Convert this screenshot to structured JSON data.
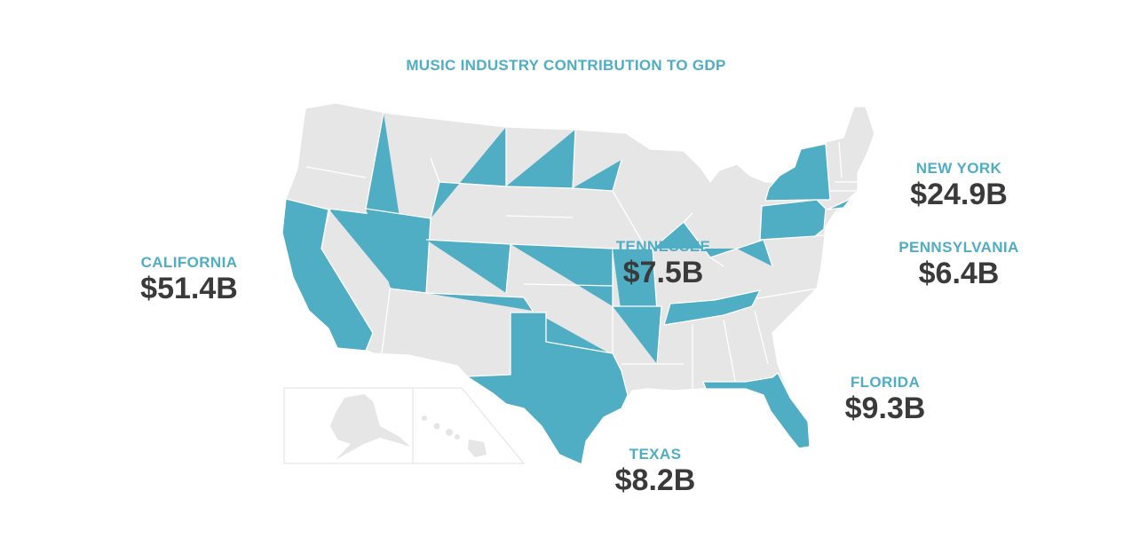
{
  "title": "MUSIC INDUSTRY CONTRIBUTION TO GDP",
  "colors": {
    "title": "#4fadc4",
    "highlight": "#4fadc4",
    "base": "#e6e6e6",
    "border": "#ffffff",
    "label_name": "#4fadc4",
    "label_value": "#3a3a3a"
  },
  "states": [
    {
      "name": "CALIFORNIA",
      "value": "$51.4B"
    },
    {
      "name": "NEW YORK",
      "value": "$24.9B"
    },
    {
      "name": "PENNSYLVANIA",
      "value": "$6.4B"
    },
    {
      "name": "TENNESSEE",
      "value": "$7.5B"
    },
    {
      "name": "FLORIDA",
      "value": "$9.3B"
    },
    {
      "name": "TEXAS",
      "value": "$8.2B"
    }
  ]
}
